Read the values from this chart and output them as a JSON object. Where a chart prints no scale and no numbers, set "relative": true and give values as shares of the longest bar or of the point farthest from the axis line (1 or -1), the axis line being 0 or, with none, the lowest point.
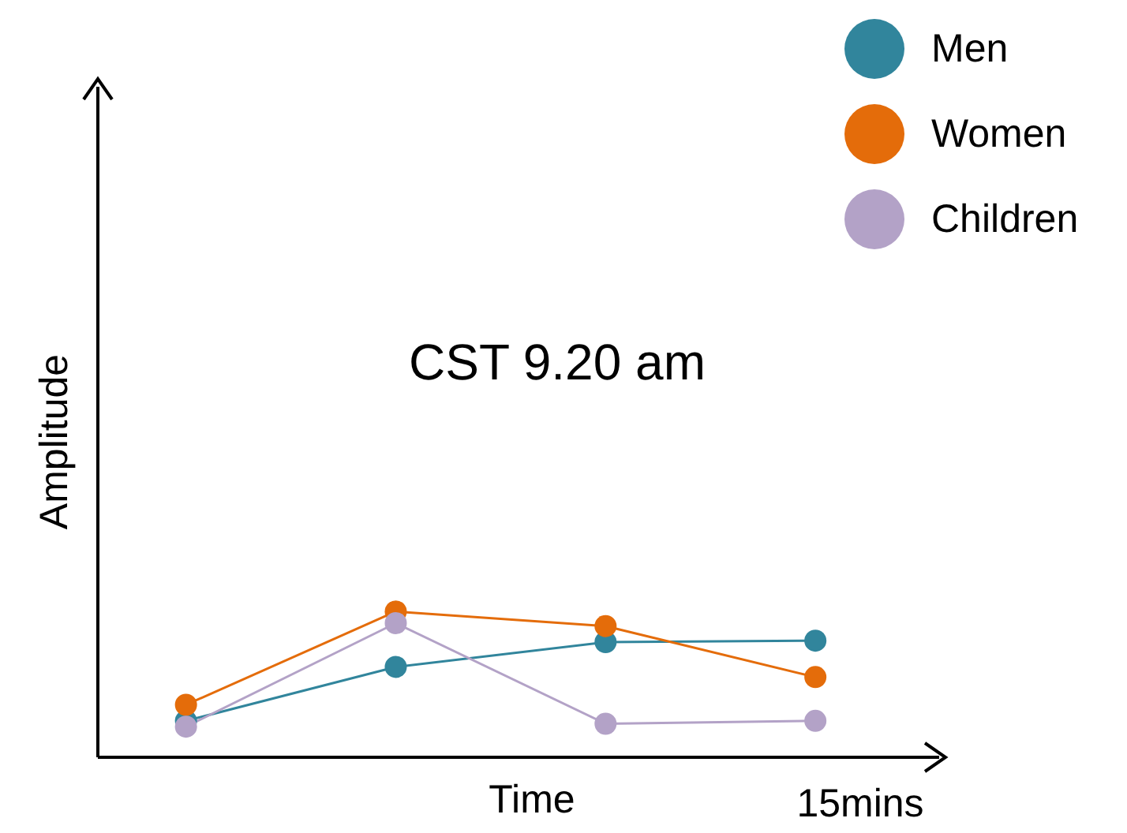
{
  "chart_data": {
    "type": "line",
    "xlabel": "Time",
    "ylabel": "Amplitude",
    "annotations": [
      "CST 9.20 am",
      "15mins"
    ],
    "categories": [
      null,
      null,
      null,
      null
    ],
    "relative": true,
    "marker": "circle",
    "line_style": "solid",
    "legend": "top right",
    "series": [
      {
        "name": "Men",
        "color": "#31859c",
        "values": [
          0.25,
          0.62,
          0.79,
          0.8
        ]
      },
      {
        "name": "Women",
        "color": "#e46c0a",
        "values": [
          0.36,
          1,
          0.9,
          0.55
        ]
      },
      {
        "name": "Children",
        "color": "#b3a2c7",
        "values": [
          0.21,
          0.92,
          0.23,
          0.25
        ]
      }
    ]
  }
}
